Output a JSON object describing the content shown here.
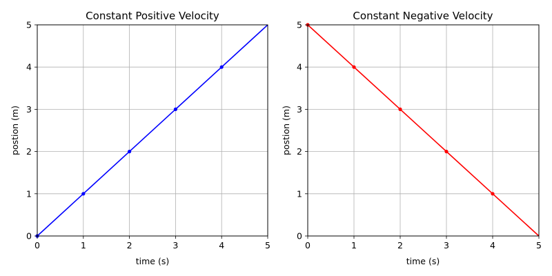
{
  "chart_data": [
    {
      "type": "line",
      "title": "Constant Positive Velocity",
      "xlabel": "time (s)",
      "ylabel": "postion (m)",
      "xlim": [
        0,
        5
      ],
      "ylim": [
        0,
        5
      ],
      "xticks": [
        0,
        1,
        2,
        3,
        4,
        5
      ],
      "yticks": [
        0,
        1,
        2,
        3,
        4,
        5
      ],
      "grid": true,
      "series": [
        {
          "color": "#0000ff",
          "line_x": [
            0,
            5
          ],
          "line_y": [
            0,
            5
          ],
          "points_x": [
            0,
            1,
            2,
            3,
            4
          ],
          "points_y": [
            0,
            1,
            2,
            3,
            4
          ]
        }
      ]
    },
    {
      "type": "line",
      "title": "Constant Negative Velocity",
      "xlabel": "time (s)",
      "ylabel": "postion (m)",
      "xlim": [
        0,
        5
      ],
      "ylim": [
        0,
        5
      ],
      "xticks": [
        0,
        1,
        2,
        3,
        4,
        5
      ],
      "yticks": [
        0,
        1,
        2,
        3,
        4,
        5
      ],
      "grid": true,
      "series": [
        {
          "color": "#ff0000",
          "line_x": [
            0,
            5
          ],
          "line_y": [
            5,
            0
          ],
          "points_x": [
            0,
            1,
            2,
            3,
            4
          ],
          "points_y": [
            5,
            4,
            3,
            2,
            1
          ]
        }
      ]
    }
  ]
}
